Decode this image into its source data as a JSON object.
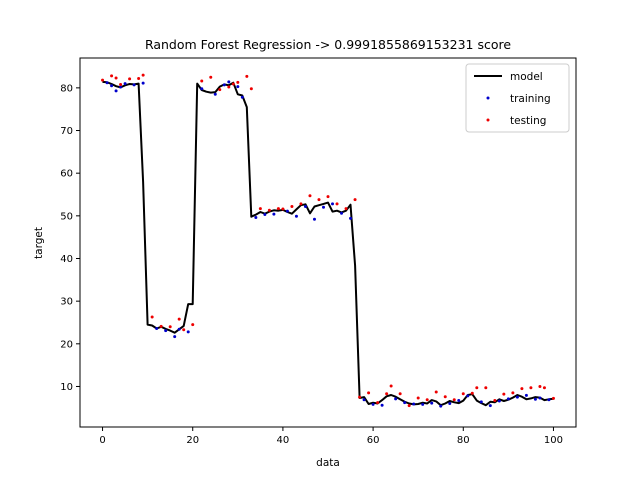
{
  "chart_data": {
    "type": "scatter",
    "title": "Random Forest Regression -> 0.9991855869153231 score",
    "xlabel": "data",
    "ylabel": "target",
    "xlim": [
      -5,
      105
    ],
    "ylim": [
      0.5,
      87
    ],
    "xticks": [
      0,
      20,
      40,
      60,
      80,
      100
    ],
    "yticks": [
      10,
      20,
      30,
      40,
      50,
      60,
      70,
      80
    ],
    "grid": false,
    "legend_position": "top-right",
    "colors": {
      "model": "#000000",
      "training": "#0000cc",
      "testing": "#ee0000"
    },
    "series": [
      {
        "name": "model",
        "kind": "line",
        "x": [
          0,
          1,
          2,
          3,
          4,
          5,
          6,
          7,
          8,
          9,
          10,
          11,
          12,
          13,
          14,
          15,
          16,
          17,
          18,
          19,
          20,
          21,
          22,
          23,
          24,
          25,
          26,
          27,
          28,
          29,
          30,
          31,
          32,
          33,
          34,
          35,
          36,
          37,
          38,
          39,
          40,
          41,
          42,
          43,
          44,
          45,
          46,
          47,
          48,
          49,
          50,
          51,
          52,
          53,
          54,
          55,
          56,
          57,
          58,
          59,
          60,
          61,
          62,
          63,
          64,
          65,
          66,
          67,
          68,
          69,
          70,
          71,
          72,
          73,
          74,
          75,
          76,
          77,
          78,
          79,
          80,
          81,
          82,
          83,
          84,
          85,
          86,
          87,
          88,
          89,
          90,
          91,
          92,
          93,
          94,
          95,
          96,
          97,
          98,
          99,
          100
        ],
        "y": [
          81.4,
          81.3,
          80.9,
          80.4,
          80.1,
          80.6,
          80.9,
          80.8,
          81.0,
          58.0,
          24.5,
          24.3,
          23.6,
          24.0,
          23.5,
          23.1,
          22.6,
          23.4,
          24.2,
          29.3,
          29.3,
          81.0,
          79.5,
          79.1,
          78.9,
          79.0,
          80.3,
          80.8,
          80.6,
          81.2,
          78.5,
          78.2,
          75.5,
          49.8,
          50.3,
          50.9,
          50.5,
          51.0,
          51.3,
          51.2,
          51.4,
          50.9,
          50.5,
          51.5,
          52.5,
          52.7,
          50.6,
          52.2,
          52.5,
          52.8,
          53.1,
          51.0,
          51.2,
          50.8,
          51.2,
          52.6,
          38.3,
          7.3,
          7.5,
          5.9,
          6.2,
          6.0,
          6.8,
          7.7,
          8.0,
          7.6,
          7.0,
          6.4,
          6.0,
          5.8,
          5.9,
          6.2,
          6.0,
          6.8,
          6.5,
          5.6,
          6.0,
          6.6,
          6.3,
          6.1,
          6.7,
          8.0,
          8.2,
          6.7,
          6.1,
          5.6,
          6.4,
          6.3,
          7.0,
          6.6,
          6.9,
          7.4,
          8.0,
          7.6,
          7.0,
          7.2,
          7.5,
          7.4,
          6.8,
          7.0,
          7.1
        ]
      },
      {
        "name": "training",
        "kind": "scatter",
        "x": [
          1,
          2,
          3,
          4,
          5,
          7,
          9,
          12,
          14,
          16,
          17,
          19,
          22,
          25,
          27,
          28,
          30,
          31,
          34,
          36,
          38,
          41,
          43,
          45,
          47,
          49,
          51,
          53,
          55,
          58,
          60,
          62,
          65,
          67,
          69,
          71,
          73,
          75,
          77,
          79,
          81,
          84,
          86,
          88,
          90,
          92,
          94,
          96,
          97,
          99
        ],
        "y": [
          81.2,
          80.5,
          79.3,
          80.2,
          81.0,
          80.7,
          81.1,
          23.6,
          23.1,
          21.7,
          23.4,
          22.8,
          79.8,
          78.5,
          80.7,
          81.4,
          80.3,
          77.8,
          49.6,
          50.3,
          50.4,
          51.1,
          49.9,
          52.2,
          49.2,
          52.0,
          52.8,
          50.6,
          49.4,
          6.9,
          5.8,
          5.6,
          7.1,
          6.2,
          5.9,
          5.8,
          6.1,
          5.4,
          6.0,
          6.7,
          7.8,
          6.4,
          5.5,
          6.6,
          7.1,
          7.5,
          7.9,
          7.0,
          7.3,
          6.9
        ]
      },
      {
        "name": "testing",
        "kind": "scatter",
        "x": [
          0,
          2,
          3,
          4,
          6,
          8,
          9,
          11,
          13,
          15,
          17,
          18,
          20,
          22,
          24,
          26,
          28,
          29,
          30,
          32,
          33,
          35,
          37,
          39,
          40,
          42,
          44,
          46,
          48,
          50,
          52,
          54,
          56,
          57,
          59,
          61,
          63,
          64,
          66,
          68,
          70,
          72,
          74,
          76,
          78,
          80,
          82,
          83,
          85,
          87,
          89,
          91,
          93,
          95,
          97,
          98,
          100
        ],
        "y": [
          81.8,
          82.8,
          82.3,
          80.8,
          82.1,
          82.2,
          83.0,
          26.3,
          24.1,
          24.0,
          25.8,
          23.3,
          24.5,
          81.6,
          82.5,
          79.6,
          80.2,
          80.9,
          81.3,
          82.7,
          79.8,
          51.7,
          51.3,
          51.7,
          51.6,
          52.2,
          52.8,
          54.7,
          53.8,
          54.5,
          52.8,
          51.7,
          53.8,
          7.5,
          8.5,
          6.2,
          8.3,
          10.1,
          8.3,
          5.5,
          7.3,
          6.9,
          8.7,
          7.6,
          6.9,
          8.3,
          8.4,
          9.7,
          9.7,
          6.7,
          8.2,
          8.5,
          9.5,
          9.7,
          10.0,
          9.7,
          7.2
        ]
      }
    ]
  }
}
